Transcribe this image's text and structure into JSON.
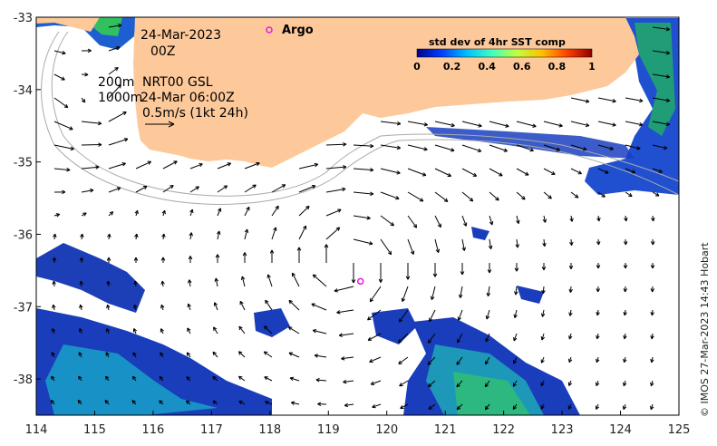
{
  "map": {
    "lon_ticks": [
      "114",
      "115",
      "116",
      "117",
      "118",
      "119",
      "120",
      "121",
      "122",
      "123",
      "124",
      "125"
    ],
    "lat_ticks": [
      "-33",
      "-34",
      "-35",
      "-36",
      "-37",
      "-38"
    ],
    "lon_range": [
      114,
      125
    ],
    "lat_range": [
      -38.5,
      -33
    ],
    "land_color": "#fdc99a",
    "ocean_color": "#ffffff",
    "arrow_color": "#000000",
    "isobath_color": "#aaaaaa"
  },
  "annotations": {
    "date": "24-Mar-2023",
    "time": "00Z",
    "iso200": "200m",
    "product": "NRT00 GSL",
    "iso1000": "1000m",
    "product_time": "24-Mar 06:00Z",
    "scale_label": "0.5m/s (1kt 24h)"
  },
  "argo": {
    "legend_label": "Argo",
    "color": "#e020e0",
    "floats": [
      {
        "lon": 119.55,
        "lat": -36.65
      }
    ]
  },
  "colorbar": {
    "title": "std dev of 4hr SST comp",
    "ticks": [
      "0",
      "0.2",
      "0.4",
      "0.6",
      "0.8",
      "1"
    ],
    "colors": [
      "#00008f",
      "#0040ff",
      "#00c0ff",
      "#40ffbf",
      "#c0ff40",
      "#ffc000",
      "#ff4000",
      "#8f0000"
    ]
  },
  "credit": "© IMOS 27-Mar-2023 14:43 Hobart"
}
